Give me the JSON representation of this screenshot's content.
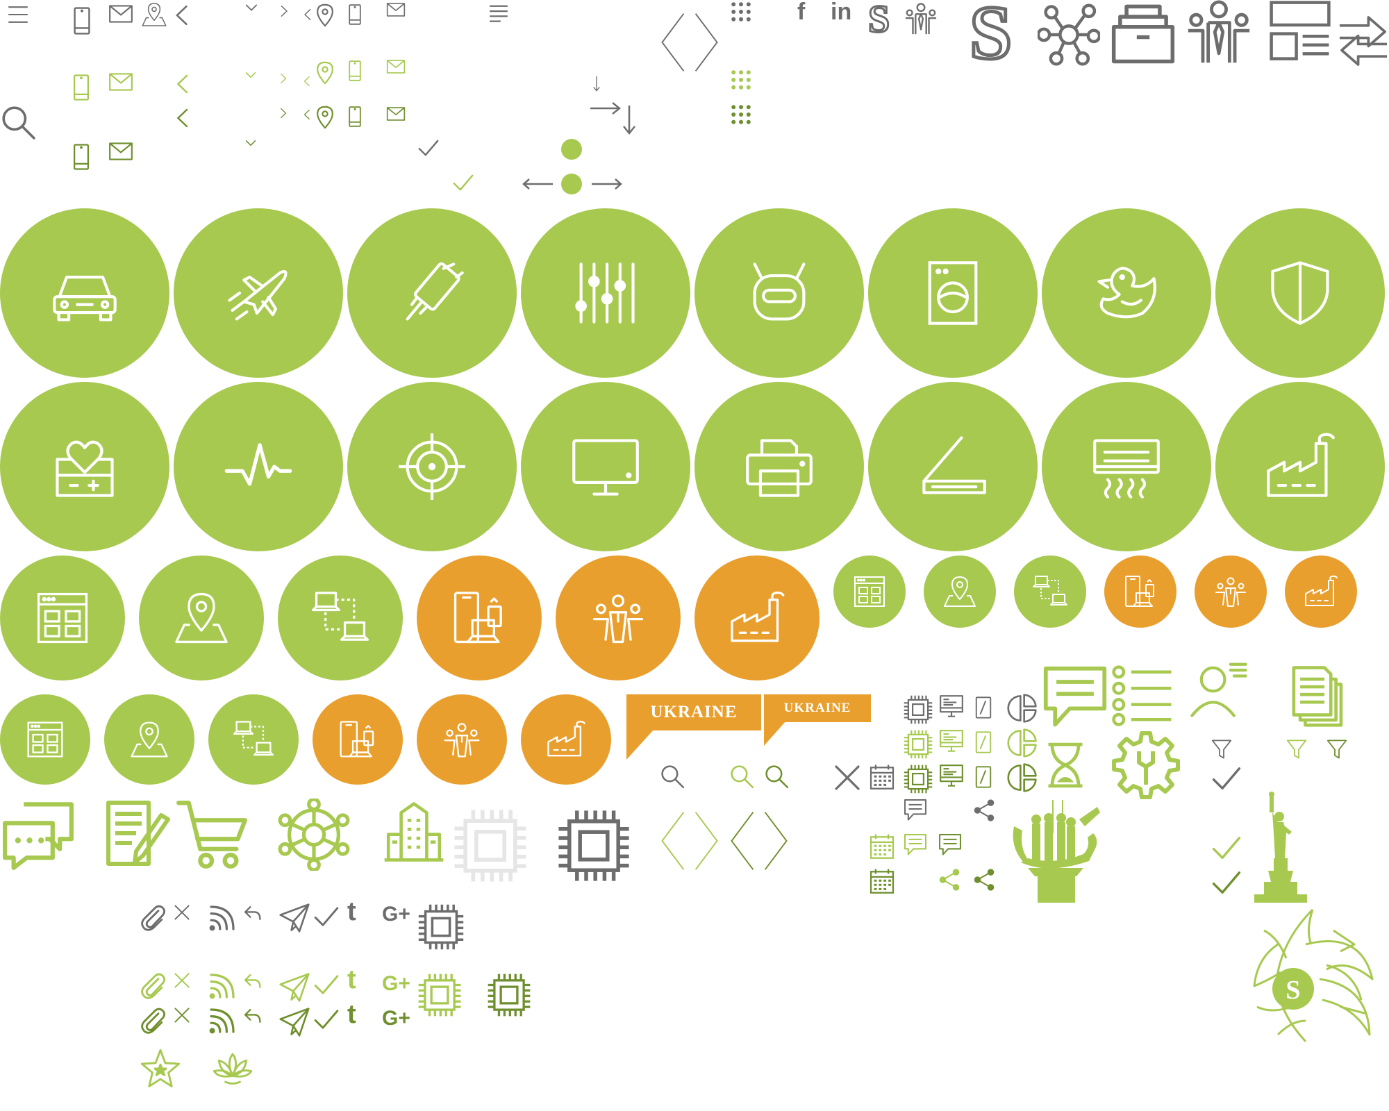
{
  "colors": {
    "green": "#a7c950",
    "dark_green": "#6f8f2e",
    "orange": "#e99f2e",
    "gray": "#6d6d6d",
    "light_gray": "#e6e6e6"
  },
  "social": {
    "facebook": "f",
    "linkedin": "in",
    "google_plus": "G+",
    "tumblr": "t"
  },
  "logos": {
    "brand_letter": "S"
  },
  "banners": {
    "ukraine_large": "UKRAINE",
    "ukraine_small": "UKRAINE"
  },
  "big_circles_row1": [
    {
      "icon": "car-icon",
      "color": "green"
    },
    {
      "icon": "airplane-icon",
      "color": "green"
    },
    {
      "icon": "phone-charging-icon",
      "color": "green"
    },
    {
      "icon": "equalizer-sliders-icon",
      "color": "green"
    },
    {
      "icon": "robot-icon",
      "color": "green"
    },
    {
      "icon": "washing-machine-icon",
      "color": "green"
    },
    {
      "icon": "rubber-duck-icon",
      "color": "green"
    },
    {
      "icon": "shield-icon",
      "color": "green"
    }
  ],
  "big_circles_row2": [
    {
      "icon": "battery-heart-icon",
      "color": "green"
    },
    {
      "icon": "pulse-icon",
      "color": "green"
    },
    {
      "icon": "target-crosshair-icon",
      "color": "green"
    },
    {
      "icon": "monitor-icon",
      "color": "green"
    },
    {
      "icon": "printer-icon",
      "color": "green"
    },
    {
      "icon": "scanner-icon",
      "color": "green"
    },
    {
      "icon": "air-conditioner-icon",
      "color": "green"
    },
    {
      "icon": "factory-icon",
      "color": "green"
    }
  ],
  "medium_circles_row": [
    {
      "icon": "dashboard-grid-icon",
      "color": "green"
    },
    {
      "icon": "map-pin-icon",
      "color": "green"
    },
    {
      "icon": "network-laptops-icon",
      "color": "green"
    },
    {
      "icon": "devices-icon",
      "color": "orange"
    },
    {
      "icon": "team-icon",
      "color": "orange"
    },
    {
      "icon": "factory-icon",
      "color": "orange"
    }
  ],
  "small_circles_row": [
    {
      "icon": "dashboard-grid-icon",
      "color": "green"
    },
    {
      "icon": "map-pin-icon",
      "color": "green"
    },
    {
      "icon": "network-laptops-icon",
      "color": "green"
    },
    {
      "icon": "devices-icon",
      "color": "orange"
    },
    {
      "icon": "team-icon",
      "color": "orange"
    },
    {
      "icon": "factory-icon",
      "color": "orange"
    }
  ],
  "mid_circles_row4": [
    {
      "icon": "dashboard-grid-icon",
      "color": "green"
    },
    {
      "icon": "map-pin-icon",
      "color": "green"
    },
    {
      "icon": "network-laptops-icon",
      "color": "green"
    },
    {
      "icon": "devices-icon",
      "color": "orange"
    },
    {
      "icon": "team-icon",
      "color": "orange"
    },
    {
      "icon": "factory-icon",
      "color": "orange"
    }
  ]
}
